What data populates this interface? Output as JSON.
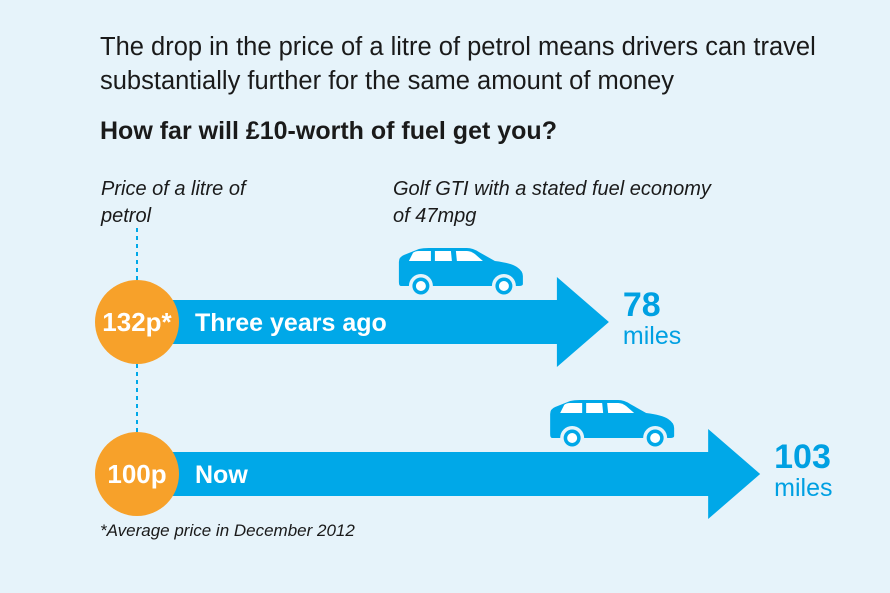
{
  "headline": "The drop in the price of a litre of petrol means drivers can travel substantially further for the same amount of money",
  "subtitle": "How far will £10-worth of fuel get you?",
  "price_label": "Price of a litre of petrol",
  "car_label": "Golf GTI with a stated fuel economy of 47mpg",
  "footnote": "*Average price in December 2012",
  "colors": {
    "arrow": "#00a8e8",
    "price_circle": "#f7a12a",
    "car": "#00a8e8",
    "miles_text": "#00a0e2",
    "background": "#e6f3fa"
  },
  "icons": [
    "car-icon"
  ],
  "chart_data": {
    "type": "bar",
    "orientation": "horizontal",
    "title": "How far will £10-worth of fuel get you?",
    "categories": [
      "Three years ago",
      "Now"
    ],
    "series": [
      {
        "name": "",
        "values": [
          78,
          103
        ]
      }
    ],
    "prices": [
      "132p*",
      "100p"
    ],
    "miles_labels": [
      "78",
      "103"
    ],
    "unit": "miles"
  }
}
